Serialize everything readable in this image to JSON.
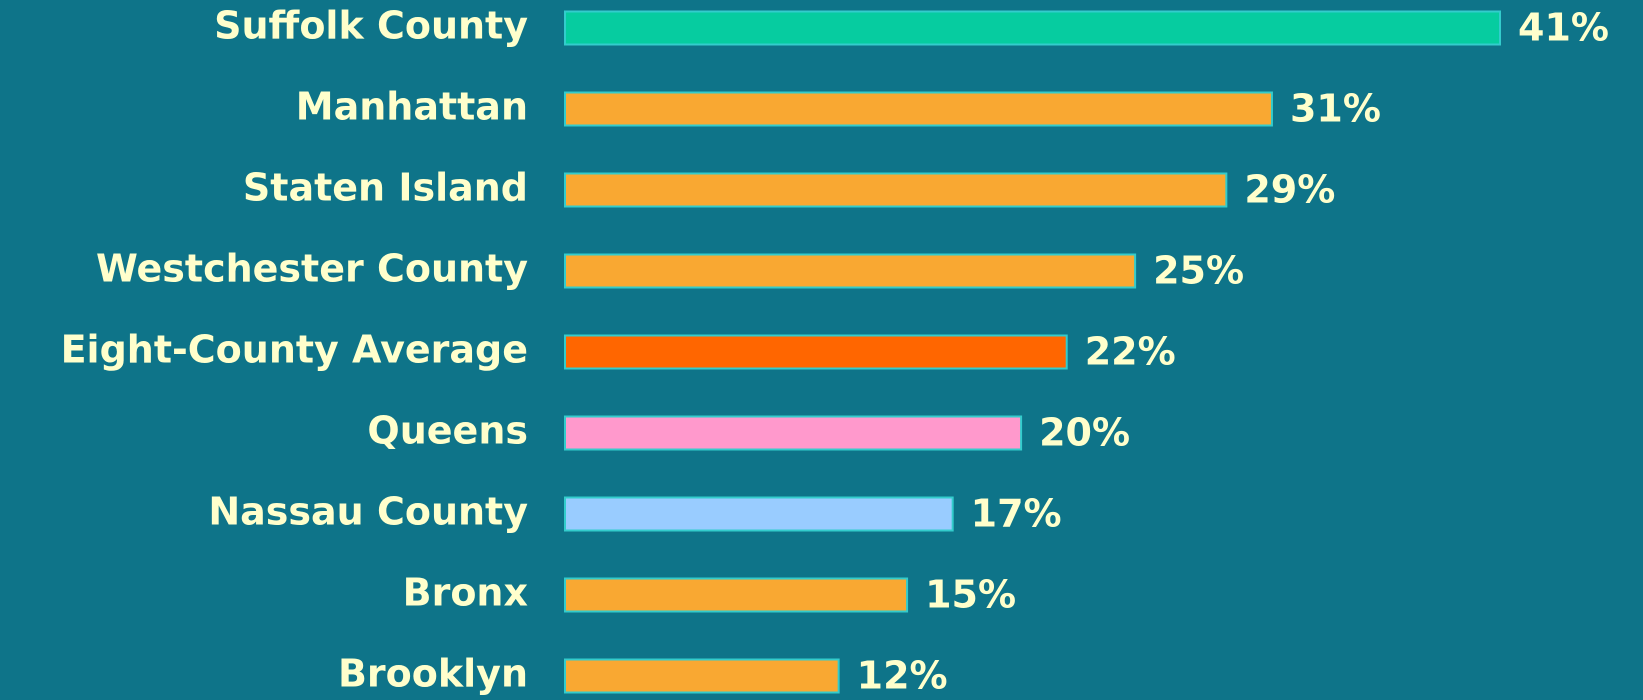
{
  "chart_data": {
    "type": "barh",
    "categories": [
      "Suffolk County",
      "Manhattan",
      "Staten Island",
      "Westchester County",
      "Eight-County Average",
      "Queens",
      "Nassau County",
      "Bronx",
      "Brooklyn"
    ],
    "values": [
      41,
      31,
      29,
      25,
      22,
      20,
      17,
      15,
      12
    ],
    "value_labels": [
      "41%",
      "31%",
      "29%",
      "25%",
      "22%",
      "20%",
      "17%",
      "15%",
      "12%"
    ],
    "colors": [
      "#06cca0",
      "#f9a832",
      "#f9a832",
      "#f9a832",
      "#ff6600",
      "#ff99cc",
      "#99ccff",
      "#f9a832",
      "#f9a832"
    ]
  }
}
